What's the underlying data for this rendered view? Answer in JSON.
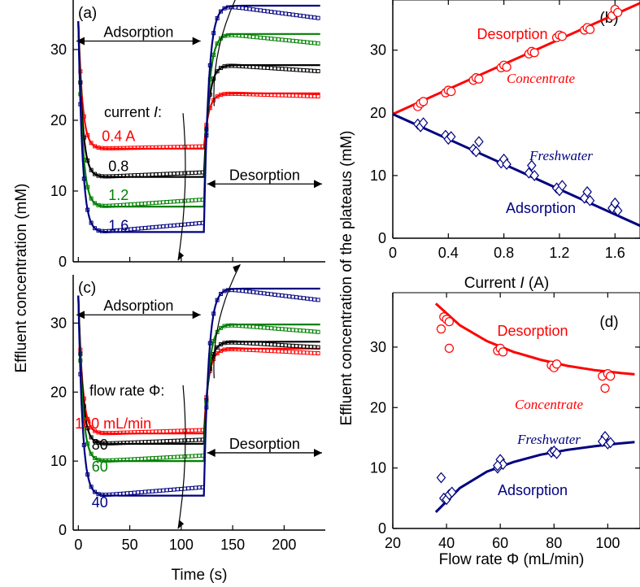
{
  "colors": {
    "red": "#ff0000",
    "black": "#000000",
    "green": "#008000",
    "navy": "#000080",
    "axis": "#000000"
  },
  "shared": {
    "ylabel_left": "Effluent concentration (mM)",
    "ylabel_right": "Effluent concentration of the plateaus (mM)",
    "xlabel_time": "Time (s)"
  },
  "chart_data": [
    {
      "id": "a",
      "type": "line",
      "panel_label": "(a)",
      "xlabel": "",
      "ylabel": "Effluent concentration (mM)",
      "xlim": [
        -5,
        240
      ],
      "ylim": [
        0,
        37
      ],
      "xticks": [
        0,
        50,
        100,
        150,
        200
      ],
      "yticks": [
        0,
        10,
        20,
        30
      ],
      "ytick_labels": [
        "0",
        "10",
        "20",
        "30"
      ],
      "legend_title": "current I:",
      "annotations": {
        "adsorption": "Adsorption",
        "desorption": "Desorption"
      },
      "series": [
        {
          "name": "0.4 A",
          "color": "red",
          "adsorption_plateau": 16.0,
          "desorption_plateau": 23.8,
          "marker": "square"
        },
        {
          "name": "0.8",
          "color": "black",
          "adsorption_plateau": 12.0,
          "desorption_plateau": 27.8,
          "marker": "square"
        },
        {
          "name": "1.2",
          "color": "green",
          "adsorption_plateau": 7.8,
          "desorption_plateau": 32.2,
          "marker": "square"
        },
        {
          "name": "1.6",
          "color": "navy",
          "adsorption_plateau": 4.2,
          "desorption_plateau": 36.2,
          "marker": "square"
        }
      ],
      "switch_time": 122,
      "end_time": 235,
      "initial": 34
    },
    {
      "id": "b",
      "type": "scatter",
      "panel_label": "(b)",
      "xlabel": "Current I (A)",
      "xlabel_prefix": "Current ",
      "xlabel_italic": "I",
      "xlabel_suffix": " (A)",
      "ylabel": "Effluent concentration of the plateaus (mM)",
      "xlim": [
        0,
        1.78
      ],
      "ylim": [
        0,
        38
      ],
      "xticks": [
        0,
        0.4,
        0.8,
        1.2,
        1.6
      ],
      "xtick_labels": [
        "0",
        "0.4",
        "0.8",
        "1.2",
        "1.6"
      ],
      "yticks": [
        0,
        10,
        20,
        30
      ],
      "ytick_labels": [
        "0",
        "10",
        "20",
        "30"
      ],
      "series": [
        {
          "name": "Desorption",
          "sublabel": "Concentrate",
          "color": "red",
          "marker": "circle",
          "line": {
            "x": [
              0,
              1.78
            ],
            "y": [
              19.8,
              37.5
            ]
          },
          "points": [
            [
              0.18,
              21.0
            ],
            [
              0.2,
              21.5
            ],
            [
              0.22,
              21.8
            ],
            [
              0.38,
              23.2
            ],
            [
              0.4,
              23.6
            ],
            [
              0.42,
              23.4
            ],
            [
              0.58,
              25.2
            ],
            [
              0.6,
              25.6
            ],
            [
              0.62,
              25.4
            ],
            [
              0.78,
              27.2
            ],
            [
              0.8,
              27.6
            ],
            [
              0.82,
              27.3
            ],
            [
              0.98,
              29.4
            ],
            [
              1.0,
              29.8
            ],
            [
              1.02,
              29.6
            ],
            [
              1.18,
              32.0
            ],
            [
              1.2,
              32.4
            ],
            [
              1.22,
              32.2
            ],
            [
              1.38,
              33.2
            ],
            [
              1.4,
              33.6
            ],
            [
              1.42,
              33.3
            ],
            [
              1.58,
              35.5
            ],
            [
              1.6,
              36.5
            ],
            [
              1.62,
              36.0
            ]
          ]
        },
        {
          "name": "Adsorption",
          "sublabel": "Freshwater",
          "color": "navy",
          "marker": "diamond",
          "line": {
            "x": [
              0,
              1.78
            ],
            "y": [
              19.8,
              2.0
            ]
          },
          "points": [
            [
              0.18,
              18.2
            ],
            [
              0.2,
              17.8
            ],
            [
              0.22,
              18.4
            ],
            [
              0.38,
              16.4
            ],
            [
              0.4,
              15.8
            ],
            [
              0.42,
              16.2
            ],
            [
              0.58,
              14.2
            ],
            [
              0.6,
              13.8
            ],
            [
              0.62,
              15.4
            ],
            [
              0.78,
              12.0
            ],
            [
              0.8,
              12.6
            ],
            [
              0.82,
              11.8
            ],
            [
              0.98,
              10.4
            ],
            [
              1.0,
              11.6
            ],
            [
              1.02,
              10.0
            ],
            [
              1.18,
              8.0
            ],
            [
              1.2,
              7.6
            ],
            [
              1.22,
              8.4
            ],
            [
              1.38,
              6.4
            ],
            [
              1.4,
              7.4
            ],
            [
              1.42,
              6.0
            ],
            [
              1.58,
              4.8
            ],
            [
              1.6,
              5.6
            ],
            [
              1.62,
              4.4
            ]
          ]
        }
      ]
    },
    {
      "id": "c",
      "type": "line",
      "panel_label": "(c)",
      "xlabel": "Time (s)",
      "ylabel": "Effluent concentration (mM)",
      "xlim": [
        -5,
        240
      ],
      "ylim": [
        0,
        37
      ],
      "xticks": [
        0,
        50,
        100,
        150,
        200
      ],
      "xtick_labels": [
        "0",
        "50",
        "100",
        "150",
        "200"
      ],
      "yticks": [
        0,
        10,
        20,
        30
      ],
      "ytick_labels": [
        "0",
        "10",
        "20",
        "30"
      ],
      "legend_title": "flow rate Φ:",
      "annotations": {
        "adsorption": "Adsorption",
        "desorption": "Desorption"
      },
      "series": [
        {
          "name": "100 mL/min",
          "color": "red",
          "adsorption_plateau": 14.0,
          "desorption_plateau": 26.3,
          "marker": "square"
        },
        {
          "name": "80",
          "color": "black",
          "adsorption_plateau": 12.5,
          "desorption_plateau": 27.3,
          "marker": "square"
        },
        {
          "name": "60",
          "color": "green",
          "adsorption_plateau": 10.0,
          "desorption_plateau": 29.8,
          "marker": "square"
        },
        {
          "name": "40",
          "color": "navy",
          "adsorption_plateau": 5.0,
          "desorption_plateau": 35.0,
          "marker": "square"
        }
      ],
      "switch_time": 122,
      "end_time": 235,
      "initial": 34
    },
    {
      "id": "d",
      "type": "scatter",
      "panel_label": "(d)",
      "xlabel": "Flow rate Φ (mL/min)",
      "ylabel": "Effluent concentration of the plateaus (mM)",
      "xlim": [
        20,
        112
      ],
      "ylim": [
        0,
        39
      ],
      "xticks": [
        20,
        40,
        60,
        80,
        100
      ],
      "xtick_labels": [
        "20",
        "40",
        "60",
        "80",
        "100"
      ],
      "yticks": [
        0,
        10,
        20,
        30
      ],
      "ytick_labels": [
        "0",
        "10",
        "20",
        "30"
      ],
      "series": [
        {
          "name": "Desorption",
          "sublabel": "Concentrate",
          "color": "red",
          "marker": "circle",
          "curve": {
            "x": [
              36,
              45,
              55,
              65,
              75,
              85,
              95,
              105,
              110
            ],
            "y": [
              37.2,
              33.6,
              31.0,
              29.2,
              27.9,
              26.9,
              26.2,
              25.7,
              25.5
            ]
          },
          "points": [
            [
              38,
              33.0
            ],
            [
              39,
              35.0
            ],
            [
              40,
              34.6
            ],
            [
              41,
              34.2
            ],
            [
              41,
              29.8
            ],
            [
              59,
              29.4
            ],
            [
              60,
              29.8
            ],
            [
              61,
              29.2
            ],
            [
              79,
              27.0
            ],
            [
              80,
              26.6
            ],
            [
              81,
              27.2
            ],
            [
              98,
              25.2
            ],
            [
              99,
              23.2
            ],
            [
              100,
              25.6
            ],
            [
              101,
              25.2
            ]
          ]
        },
        {
          "name": "Adsorption",
          "sublabel": "Freshwater",
          "color": "navy",
          "marker": "diamond",
          "curve": {
            "x": [
              36,
              45,
              55,
              65,
              75,
              85,
              95,
              105,
              110
            ],
            "y": [
              2.7,
              6.7,
              9.4,
              11.0,
              12.2,
              13.0,
              13.6,
              14.1,
              14.3
            ]
          },
          "points": [
            [
              38,
              8.4
            ],
            [
              39,
              5.0
            ],
            [
              40,
              4.8
            ],
            [
              41,
              5.6
            ],
            [
              42,
              6.0
            ],
            [
              59,
              10.0
            ],
            [
              60,
              11.4
            ],
            [
              61,
              10.6
            ],
            [
              59,
              10.4
            ],
            [
              79,
              12.6
            ],
            [
              80,
              12.8
            ],
            [
              81,
              12.4
            ],
            [
              99,
              15.2
            ],
            [
              100,
              14.0
            ],
            [
              98,
              14.4
            ],
            [
              101,
              14.2
            ]
          ]
        }
      ]
    }
  ]
}
